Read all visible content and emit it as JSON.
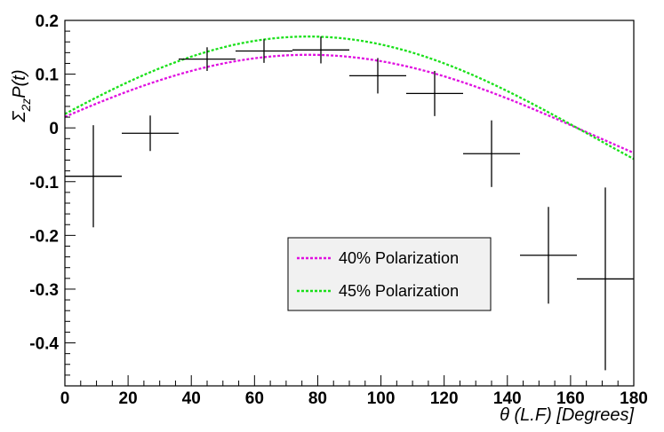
{
  "chart_data": {
    "type": "scatter",
    "title": "",
    "xlabel": "θ   (L.F)   [Degrees]",
    "ylabel": "Σ2zP(t)",
    "ylabel_parts": {
      "main": "Σ",
      "sub": "2z",
      "rest": "P(t)"
    },
    "xlim": [
      0,
      180
    ],
    "ylim": [
      -0.48,
      0.2
    ],
    "x_ticks": [
      0,
      20,
      40,
      60,
      80,
      100,
      120,
      140,
      160,
      180
    ],
    "x_tick_labels": [
      "0",
      "20",
      "40",
      "60",
      "80",
      "100",
      "120",
      "140",
      "160",
      "180"
    ],
    "y_ticks": [
      0.2,
      0.1,
      0,
      -0.1,
      -0.2,
      -0.3,
      -0.4
    ],
    "y_tick_labels": [
      "0.2",
      "0.1",
      "0",
      "-0.1",
      "-0.2",
      "-0.3",
      "-0.4"
    ],
    "grid": false,
    "legend_position": "bottom-center",
    "data_points": [
      {
        "x": 9,
        "xerr": 9,
        "y": -0.09,
        "yerr": 0.095
      },
      {
        "x": 27,
        "xerr": 9,
        "y": -0.01,
        "yerr": 0.033
      },
      {
        "x": 45,
        "xerr": 9,
        "y": 0.128,
        "yerr": 0.022
      },
      {
        "x": 63,
        "xerr": 9,
        "y": 0.143,
        "yerr": 0.022
      },
      {
        "x": 81,
        "xerr": 9,
        "y": 0.145,
        "yerr": 0.025
      },
      {
        "x": 99,
        "xerr": 9,
        "y": 0.097,
        "yerr": 0.033
      },
      {
        "x": 117,
        "xerr": 9,
        "y": 0.064,
        "yerr": 0.042
      },
      {
        "x": 135,
        "xerr": 9,
        "y": -0.048,
        "yerr": 0.062
      },
      {
        "x": 153,
        "xerr": 9,
        "y": -0.237,
        "yerr": 0.09
      },
      {
        "x": 171,
        "xerr": 9,
        "y": -0.281,
        "yerr": 0.17
      }
    ],
    "series": [
      {
        "name": "40% Polarization",
        "color": "#e010e0",
        "style": "dashed",
        "curve": {
          "offset": -0.013,
          "amplitude": 0.149,
          "phase_deg": 77
        }
      },
      {
        "name": "45% Polarization",
        "color": "#1ae01a",
        "style": "dashed",
        "curve": {
          "offset": -0.016,
          "amplitude": 0.186,
          "phase_deg": 77
        }
      }
    ]
  }
}
